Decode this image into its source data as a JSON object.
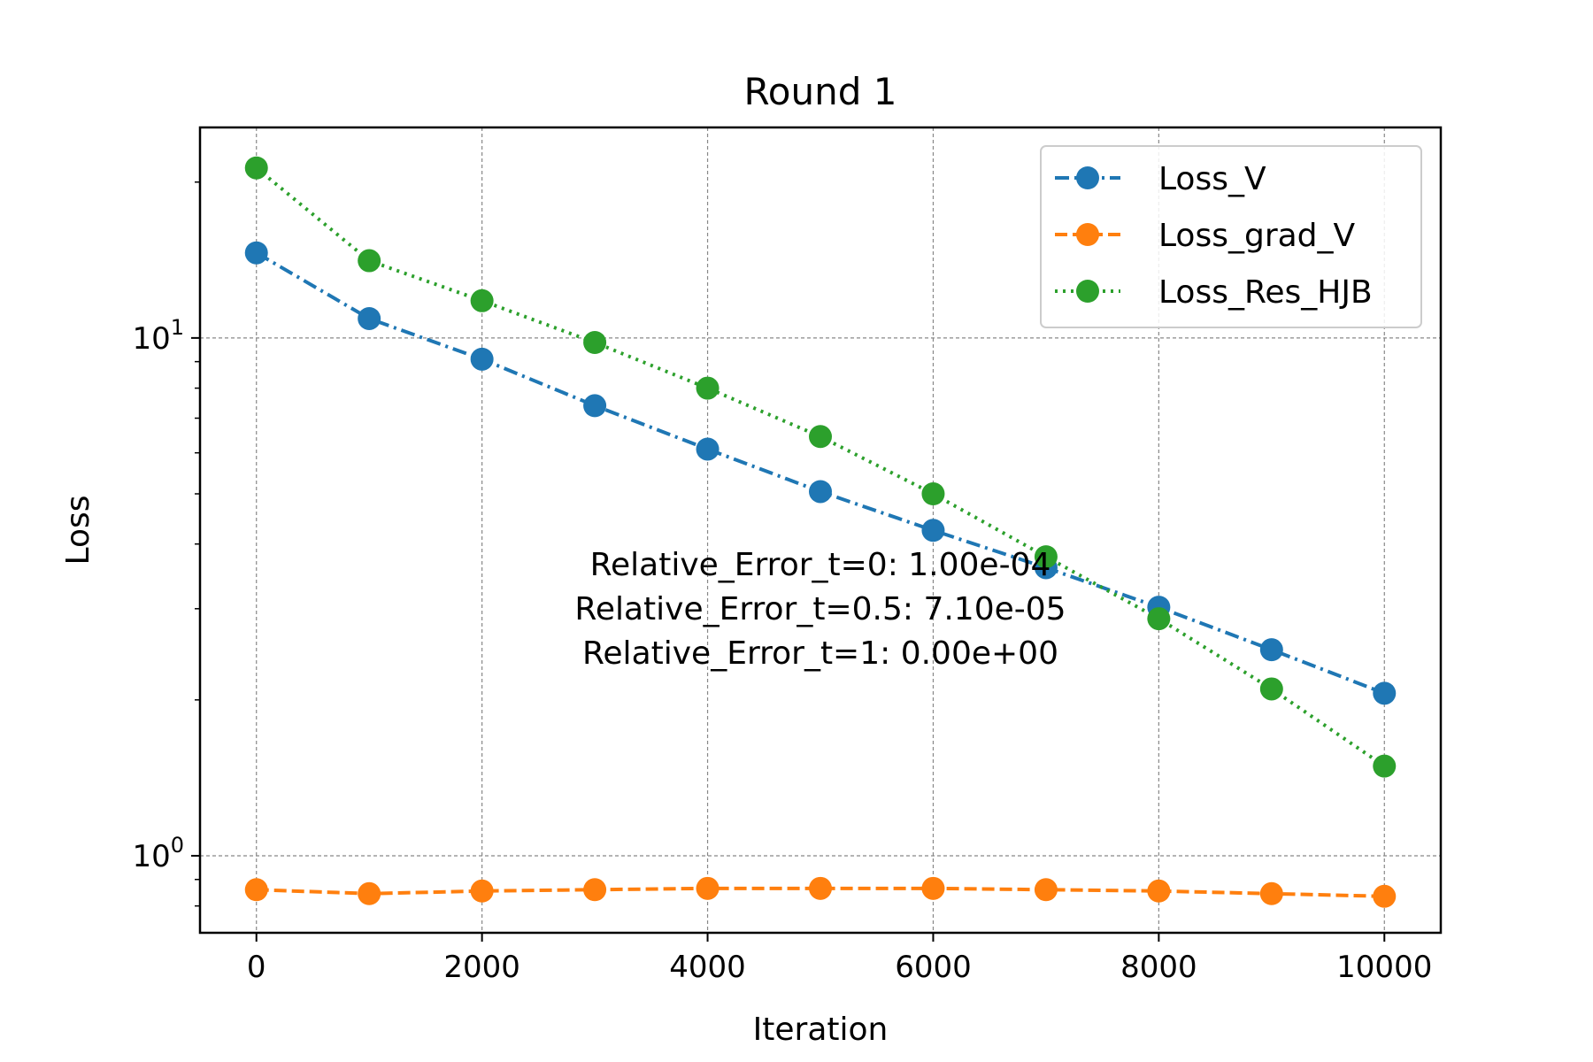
{
  "chart_data": {
    "type": "line",
    "title": "Round 1",
    "xlabel": "Iteration",
    "ylabel": "Loss",
    "yscale": "log",
    "xlim": [
      -500,
      10500
    ],
    "ylim": [
      0.71,
      25.5
    ],
    "xticks": [
      0,
      2000,
      4000,
      6000,
      8000,
      10000
    ],
    "yticks": [
      {
        "value": 1,
        "base": "10",
        "exp": "0"
      },
      {
        "value": 10,
        "base": "10",
        "exp": "1"
      }
    ],
    "grid": true,
    "legend_position": "top-right",
    "x": [
      0,
      1000,
      2000,
      3000,
      4000,
      5000,
      6000,
      7000,
      8000,
      9000,
      10000
    ],
    "series": [
      {
        "name": "Loss_V",
        "color": "#1f77b4",
        "linestyle": "dashdot",
        "values": [
          14.6,
          10.9,
          9.1,
          7.4,
          6.1,
          5.05,
          4.25,
          3.6,
          3.02,
          2.5,
          2.06
        ]
      },
      {
        "name": "Loss_grad_V",
        "color": "#ff7f0e",
        "linestyle": "dashed",
        "values": [
          0.86,
          0.845,
          0.855,
          0.86,
          0.865,
          0.865,
          0.865,
          0.86,
          0.855,
          0.845,
          0.835
        ]
      },
      {
        "name": "Loss_Res_HJB",
        "color": "#2ca02c",
        "linestyle": "dotted",
        "values": [
          21.3,
          14.1,
          11.8,
          9.8,
          8.0,
          6.45,
          5.0,
          3.78,
          2.87,
          2.1,
          1.49
        ]
      }
    ],
    "annotation": [
      "Relative_Error_t=0: 1.00e-04",
      "Relative_Error_t=0.5: 7.10e-05",
      "Relative_Error_t=1: 0.00e+00"
    ]
  }
}
